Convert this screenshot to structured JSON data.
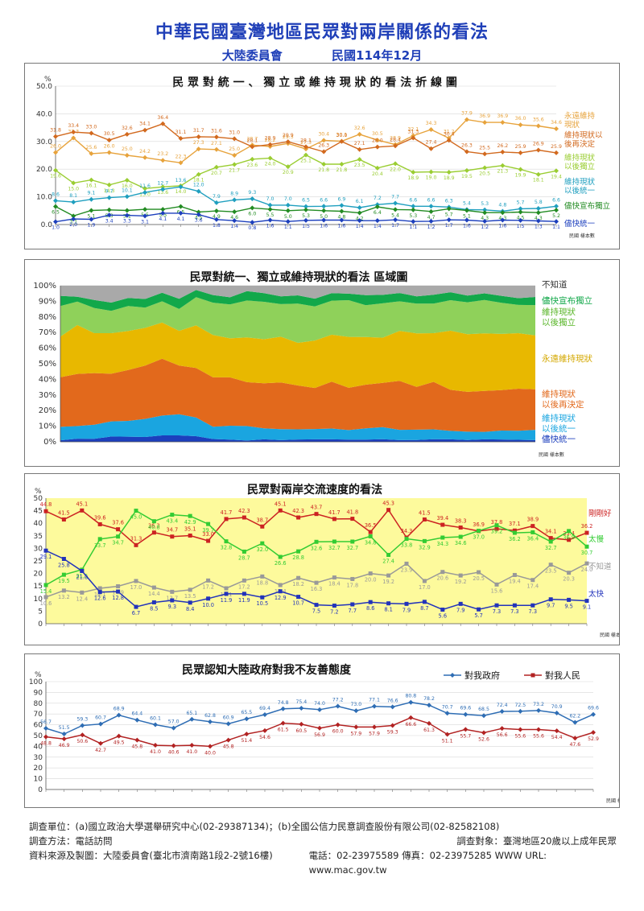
{
  "header": {
    "title": "中華民國臺灣地區民眾對兩岸關係的看法",
    "publisher": "大陸委員會",
    "date": "民國114年12月"
  },
  "chart_data": [
    {
      "type": "line",
      "title": "民 眾 對 統 一 、 獨 立 或 維 持 現 狀 的 看 法  折 線 圖",
      "ylabel": "%",
      "ylim": [
        0,
        50
      ],
      "yticks": [
        "0.0",
        "10.0",
        "20.0",
        "30.0",
        "40.0",
        "50.0"
      ],
      "xlabel": "民國 樣本數",
      "series": [
        {
          "name": "永遠維持現狀",
          "color": "#e7a33c",
          "values": [
            26.0,
            31.3,
            25.6,
            26.0,
            25.0,
            24.2,
            23.2,
            22.3,
            27.3,
            27.1,
            25.0,
            28.7,
            28.2,
            29.3,
            27.3,
            30.4,
            30.1,
            32.6,
            30.5,
            28.9,
            32.1,
            34.3,
            31.2,
            37.9,
            36.9,
            36.9,
            36.0,
            35.6,
            34.6
          ]
        },
        {
          "name": "維持現狀以後再決定",
          "color": "#d2691e",
          "values": [
            31.8,
            33.4,
            33.0,
            30.5,
            32.6,
            34.1,
            36.4,
            31.1,
            31.7,
            31.6,
            31.0,
            28.1,
            28.9,
            29.9,
            28.1,
            26.3,
            30.0,
            27.1,
            28.0,
            28.4,
            31.3,
            27.4,
            30.4,
            26.3,
            25.5,
            26.2,
            25.9,
            26.9,
            25.9
          ]
        },
        {
          "name": "維持現狀以後獨立",
          "color": "#9acd32",
          "values": [
            19.6,
            15.0,
            16.1,
            14.3,
            16.0,
            13.0,
            13.6,
            14.0,
            18.1,
            20.7,
            21.7,
            23.6,
            24.0,
            20.9,
            25.1,
            21.8,
            21.8,
            23.5,
            20.4,
            22.0,
            18.9,
            19.0,
            18.9,
            19.5,
            20.5,
            21.3,
            19.9,
            18.1,
            19.4
          ]
        },
        {
          "name": "維持現狀以後統一",
          "color": "#1f9fbf",
          "values": [
            8.6,
            8.1,
            9.1,
            9.7,
            10.1,
            11.6,
            12.7,
            13.6,
            12.0,
            7.9,
            8.9,
            9.3,
            7.0,
            7.0,
            6.5,
            6.6,
            6.9,
            6.1,
            7.2,
            7.7,
            6.6,
            6.6,
            6.3,
            5.4,
            5.3,
            4.8,
            5.7,
            5.8,
            6.6
          ]
        },
        {
          "name": "儘快宣布獨立",
          "color": "#228b22",
          "values": [
            6.5,
            3.1,
            5.1,
            5.3,
            5.1,
            5.5,
            5.5,
            6.5,
            4.5,
            4.9,
            4.6,
            6.0,
            5.5,
            5.0,
            5.3,
            5.0,
            4.8,
            4.2,
            6.4,
            5.4,
            5.3,
            4.7,
            5.7,
            5.1,
            4.3,
            4.3,
            4.5,
            4.3,
            5.2
          ]
        },
        {
          "name": "儘快統一",
          "color": "#1c3fbd",
          "values": [
            1.0,
            2.0,
            1.9,
            3.4,
            3.3,
            3.1,
            4.1,
            4.1,
            3.6,
            1.8,
            1.4,
            0.8,
            1.6,
            1.1,
            1.5,
            1.6,
            1.6,
            1.4,
            1.4,
            1.7,
            1.1,
            1.2,
            1.7,
            1.6,
            1.2,
            1.6,
            1.5,
            1.3,
            1.1
          ]
        }
      ],
      "series_labels": [
        [
          "永遠維持",
          "現狀"
        ],
        [
          "維持現狀以",
          "後再決定"
        ],
        [
          "維持現狀",
          "以後獨立"
        ],
        [
          "維持現狀",
          "以後統一"
        ],
        [
          "儘快宣布獨立"
        ],
        [
          "儘快統一"
        ]
      ]
    },
    {
      "type": "area",
      "title": "民眾對統一、獨立或維持現狀的看法 區域圖",
      "ylim": [
        0,
        100
      ],
      "yticks": [
        "0%",
        "10%",
        "20%",
        "30%",
        "40%",
        "50%",
        "60%",
        "70%",
        "80%",
        "90%",
        "100%"
      ],
      "xlabel": "民國 樣本數",
      "series_labels": [
        [
          "不知道"
        ],
        [
          "儘快宣布獨立"
        ],
        [
          "維持現狀",
          "以後獨立"
        ],
        [
          "永遠維持現狀"
        ],
        [
          "維持現狀",
          "以後再決定"
        ],
        [
          "維持現狀",
          "以後統一"
        ],
        [
          "儘快統一"
        ]
      ],
      "colors": [
        "#1c3fbd",
        "#1aa5e0",
        "#e2691c",
        "#e8b800",
        "#8fd15a",
        "#12a84a",
        "#a9a9a9"
      ]
    },
    {
      "type": "line",
      "title": "民眾對兩岸交流速度的看法",
      "ylabel": "%",
      "ylim": [
        0,
        50
      ],
      "yticks": [
        "0",
        "5",
        "10",
        "15",
        "20",
        "25",
        "30",
        "35",
        "40",
        "45",
        "50"
      ],
      "xlabel": "民國 樣本數",
      "series": [
        {
          "name": "剛剛好",
          "color": "#cc2222",
          "values": [
            44.8,
            41.5,
            45.1,
            39.6,
            37.6,
            31.3,
            36.3,
            34.7,
            35.1,
            33.0,
            41.7,
            42.3,
            38.7,
            45.1,
            42.3,
            43.7,
            41.7,
            41.8,
            36.5,
            45.3,
            34.3,
            41.5,
            39.4,
            38.3,
            36.9,
            37.8,
            37.1,
            38.9,
            34.1,
            33.4,
            36.2
          ]
        },
        {
          "name": "太慢",
          "color": "#33cc33",
          "values": [
            15.4,
            19.5,
            21.5,
            33.7,
            34.7,
            45.0,
            40.8,
            43.4,
            42.9,
            39.7,
            32.8,
            28.7,
            32.0,
            26.6,
            28.8,
            32.6,
            32.7,
            32.7,
            34.8,
            27.4,
            33.8,
            32.9,
            34.3,
            34.6,
            37.0,
            39.2,
            36.2,
            36.4,
            32.7,
            36.9,
            30.7
          ]
        },
        {
          "name": "不知道",
          "color": "#999999",
          "values": [
            10.6,
            13.2,
            12.4,
            14.1,
            14.9,
            17.0,
            14.4,
            12.7,
            13.5,
            17.2,
            14.1,
            17.2,
            18.8,
            15.4,
            18.2,
            16.3,
            18.4,
            17.8,
            20.0,
            19.2,
            23.9,
            17.0,
            20.6,
            19.2,
            20.5,
            15.6,
            19.4,
            17.4,
            23.5,
            20.3,
            24.0
          ]
        },
        {
          "name": "太快",
          "color": "#2233bb",
          "values": [
            29.1,
            25.8,
            21.0,
            12.6,
            12.8,
            6.7,
            8.5,
            9.3,
            8.4,
            10.0,
            11.9,
            11.9,
            10.5,
            12.9,
            10.7,
            7.5,
            7.2,
            7.7,
            8.6,
            8.1,
            7.9,
            8.7,
            5.6,
            7.9,
            5.7,
            7.3,
            7.3,
            7.3,
            9.7,
            9.5,
            9.1
          ]
        }
      ],
      "series_labels": [
        [
          "剛剛好"
        ],
        [
          "太慢"
        ],
        [
          "不知道"
        ],
        [
          "太快"
        ]
      ]
    },
    {
      "type": "line",
      "title": "民眾認知大陸政府對我不友善態度",
      "ylabel": "%",
      "ylim": [
        0,
        100
      ],
      "yticks": [
        "0",
        "10",
        "20",
        "30",
        "40",
        "50",
        "60",
        "70",
        "80",
        "90",
        "100"
      ],
      "xlabel": "民國 樣本數",
      "legend": [
        "對我政府",
        "對我人民"
      ],
      "series": [
        {
          "name": "對我政府",
          "color": "#2e6db4",
          "values": [
            56.7,
            51.5,
            59.3,
            60.7,
            68.9,
            64.4,
            60.1,
            57.0,
            65.1,
            62.8,
            60.9,
            65.5,
            69.4,
            74.8,
            75.4,
            74.0,
            77.2,
            73.0,
            77.1,
            76.6,
            80.8,
            78.2,
            70.7,
            69.6,
            68.5,
            72.4,
            72.5,
            73.2,
            70.9,
            62.2,
            69.6
          ]
        },
        {
          "name": "對我人民",
          "color": "#b22222",
          "values": [
            48.8,
            46.9,
            50.6,
            42.7,
            49.5,
            45.8,
            41.0,
            40.6,
            41.0,
            40.0,
            45.8,
            51.4,
            54.6,
            61.5,
            60.5,
            56.9,
            60.0,
            57.9,
            57.9,
            59.3,
            66.6,
            61.3,
            51.1,
            55.7,
            52.6,
            56.6,
            55.6,
            55.6,
            54.4,
            47.6,
            52.9
          ]
        }
      ]
    }
  ],
  "footer": {
    "survey_unit": "調查單位：(a)國立政治大學選舉研究中心(02-29387134)；(b)全國公信力民意調查股份有限公司(02-82582108)",
    "method": "調查方法：電話訪問",
    "target": "調查對象：臺灣地區20歲以上成年民眾",
    "source": "資料來源及製圖：大陸委員會(臺北市濟南路1段2-2號16樓)",
    "contact": "電話：02-23975589  傳真：02-23975285    WWW URL: www.mac.gov.tw"
  }
}
